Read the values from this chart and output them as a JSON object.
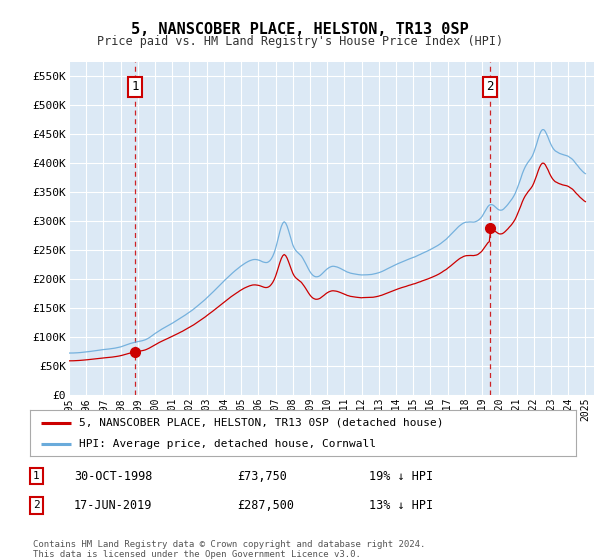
{
  "title": "5, NANSCOBER PLACE, HELSTON, TR13 0SP",
  "subtitle": "Price paid vs. HM Land Registry's House Price Index (HPI)",
  "ylim": [
    0,
    575000
  ],
  "yticks": [
    0,
    50000,
    100000,
    150000,
    200000,
    250000,
    300000,
    350000,
    400000,
    450000,
    500000,
    550000
  ],
  "ytick_labels": [
    "£0",
    "£50K",
    "£100K",
    "£150K",
    "£200K",
    "£250K",
    "£300K",
    "£350K",
    "£400K",
    "£450K",
    "£500K",
    "£550K"
  ],
  "xlim": [
    1995.0,
    2025.5
  ],
  "xticks": [
    1995,
    1996,
    1997,
    1998,
    1999,
    2000,
    2001,
    2002,
    2003,
    2004,
    2005,
    2006,
    2007,
    2008,
    2009,
    2010,
    2011,
    2012,
    2013,
    2014,
    2015,
    2016,
    2017,
    2018,
    2019,
    2020,
    2021,
    2022,
    2023,
    2024,
    2025
  ],
  "plot_bg": "#dce9f5",
  "grid_color": "#ffffff",
  "red_line_color": "#cc0000",
  "blue_line_color": "#6aabdb",
  "purchase1_year": 1998.83,
  "purchase1_price": 73750,
  "purchase2_year": 2019.46,
  "purchase2_price": 287500,
  "legend_label_red": "5, NANSCOBER PLACE, HELSTON, TR13 0SP (detached house)",
  "legend_label_blue": "HPI: Average price, detached house, Cornwall",
  "footnote": "Contains HM Land Registry data © Crown copyright and database right 2024.\nThis data is licensed under the Open Government Licence v3.0.",
  "table_rows": [
    [
      "1",
      "30-OCT-1998",
      "£73,750",
      "19% ↓ HPI"
    ],
    [
      "2",
      "17-JUN-2019",
      "£287,500",
      "13% ↓ HPI"
    ]
  ]
}
